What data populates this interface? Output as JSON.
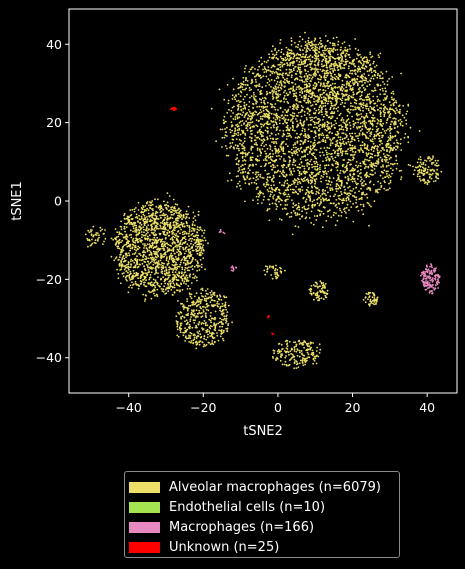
{
  "chart_data": {
    "type": "scatter",
    "xlabel": "tSNE2",
    "ylabel": "tSNE1",
    "xlim": [
      -56,
      48
    ],
    "ylim": [
      -49,
      49
    ],
    "x_ticks": [
      -40,
      -20,
      0,
      20,
      40
    ],
    "y_ticks": [
      -40,
      -20,
      0,
      20,
      40
    ],
    "x_tick_labels": [
      "−40",
      "−20",
      "0",
      "20",
      "40"
    ],
    "y_tick_labels": [
      "−40",
      "−20",
      "0",
      "20",
      "40"
    ],
    "grid": false,
    "legend_position": "below",
    "series": [
      {
        "name": "Alveolar macrophages (n=6079)",
        "color": "#ece068",
        "count": 6079,
        "clusters": [
          {
            "cx": 10,
            "cy": 18,
            "rx": 26,
            "ry": 24,
            "n": 3300
          },
          {
            "cx": 12,
            "cy": 33,
            "rx": 14,
            "ry": 9,
            "n": 380
          },
          {
            "cx": 40,
            "cy": 8,
            "rx": 4,
            "ry": 4,
            "n": 110
          },
          {
            "cx": -32,
            "cy": -12,
            "rx": 13,
            "ry": 13,
            "n": 1500
          },
          {
            "cx": -20,
            "cy": -30,
            "rx": 8,
            "ry": 8,
            "n": 420
          },
          {
            "cx": -49,
            "cy": -9,
            "rx": 3,
            "ry": 3,
            "n": 40
          },
          {
            "cx": -1,
            "cy": -18,
            "rx": 3,
            "ry": 2,
            "n": 40
          },
          {
            "cx": 11,
            "cy": -23,
            "rx": 3,
            "ry": 2.5,
            "n": 70
          },
          {
            "cx": 25,
            "cy": -25,
            "rx": 2,
            "ry": 2,
            "n": 45
          },
          {
            "cx": 5,
            "cy": -39,
            "rx": 7,
            "ry": 4,
            "n": 174
          }
        ]
      },
      {
        "name": "Endothelial cells (n=10)",
        "color": "#a6e350",
        "count": 10,
        "clusters": [
          {
            "cx": 14,
            "cy": 10,
            "rx": 6,
            "ry": 5,
            "n": 10
          }
        ]
      },
      {
        "name": "Macrophages (n=166)",
        "color": "#e989c2",
        "count": 166,
        "clusters": [
          {
            "cx": 41,
            "cy": -20,
            "rx": 2.5,
            "ry": 4,
            "n": 150
          },
          {
            "cx": -12,
            "cy": -17,
            "rx": 1,
            "ry": 1,
            "n": 10
          },
          {
            "cx": -15,
            "cy": -8,
            "rx": 1,
            "ry": 1,
            "n": 6
          }
        ]
      },
      {
        "name": "Unknown (n=25)",
        "color": "#ff0000",
        "count": 25,
        "clusters": [
          {
            "cx": -28,
            "cy": 23.5,
            "rx": 0.9,
            "ry": 0.4,
            "n": 18
          },
          {
            "cx": -2.5,
            "cy": -29.5,
            "rx": 0.3,
            "ry": 0.4,
            "n": 4
          },
          {
            "cx": -1.5,
            "cy": -34,
            "rx": 0.3,
            "ry": 0.3,
            "n": 3
          }
        ]
      }
    ]
  }
}
